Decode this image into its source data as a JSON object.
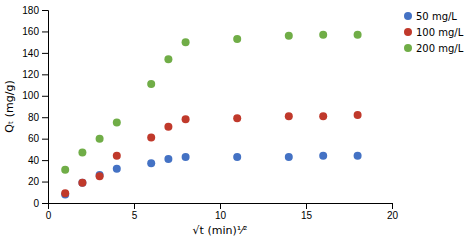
{
  "chart_data": {
    "type": "scatter",
    "xlabel": "√t (min)¹⁄²",
    "ylabel": "Qₜ (mg/g)",
    "x": [
      1,
      2,
      3,
      4,
      6,
      7,
      8,
      11,
      14,
      16,
      18
    ],
    "series": [
      {
        "name": "50 mg/L",
        "color": "#4472C4",
        "values": [
          8,
          19,
          26,
          32,
          37,
          41,
          43,
          43,
          43,
          44,
          44
        ]
      },
      {
        "name": "100 mg/L",
        "color": "#C0392B",
        "values": [
          9,
          19,
          25,
          44,
          61,
          71,
          78,
          79,
          81,
          81,
          82
        ]
      },
      {
        "name": "200 mg/L",
        "color": "#70AD47",
        "values": [
          31,
          47,
          60,
          75,
          111,
          134,
          150,
          153,
          156,
          157,
          157
        ]
      }
    ],
    "xlim": [
      0,
      20
    ],
    "ylim": [
      0,
      180
    ],
    "xticks": [
      0,
      5,
      10,
      15,
      20
    ],
    "yticks": [
      0,
      20,
      40,
      60,
      80,
      100,
      120,
      140,
      160,
      180
    ],
    "grid": false,
    "legend": "upper right"
  }
}
